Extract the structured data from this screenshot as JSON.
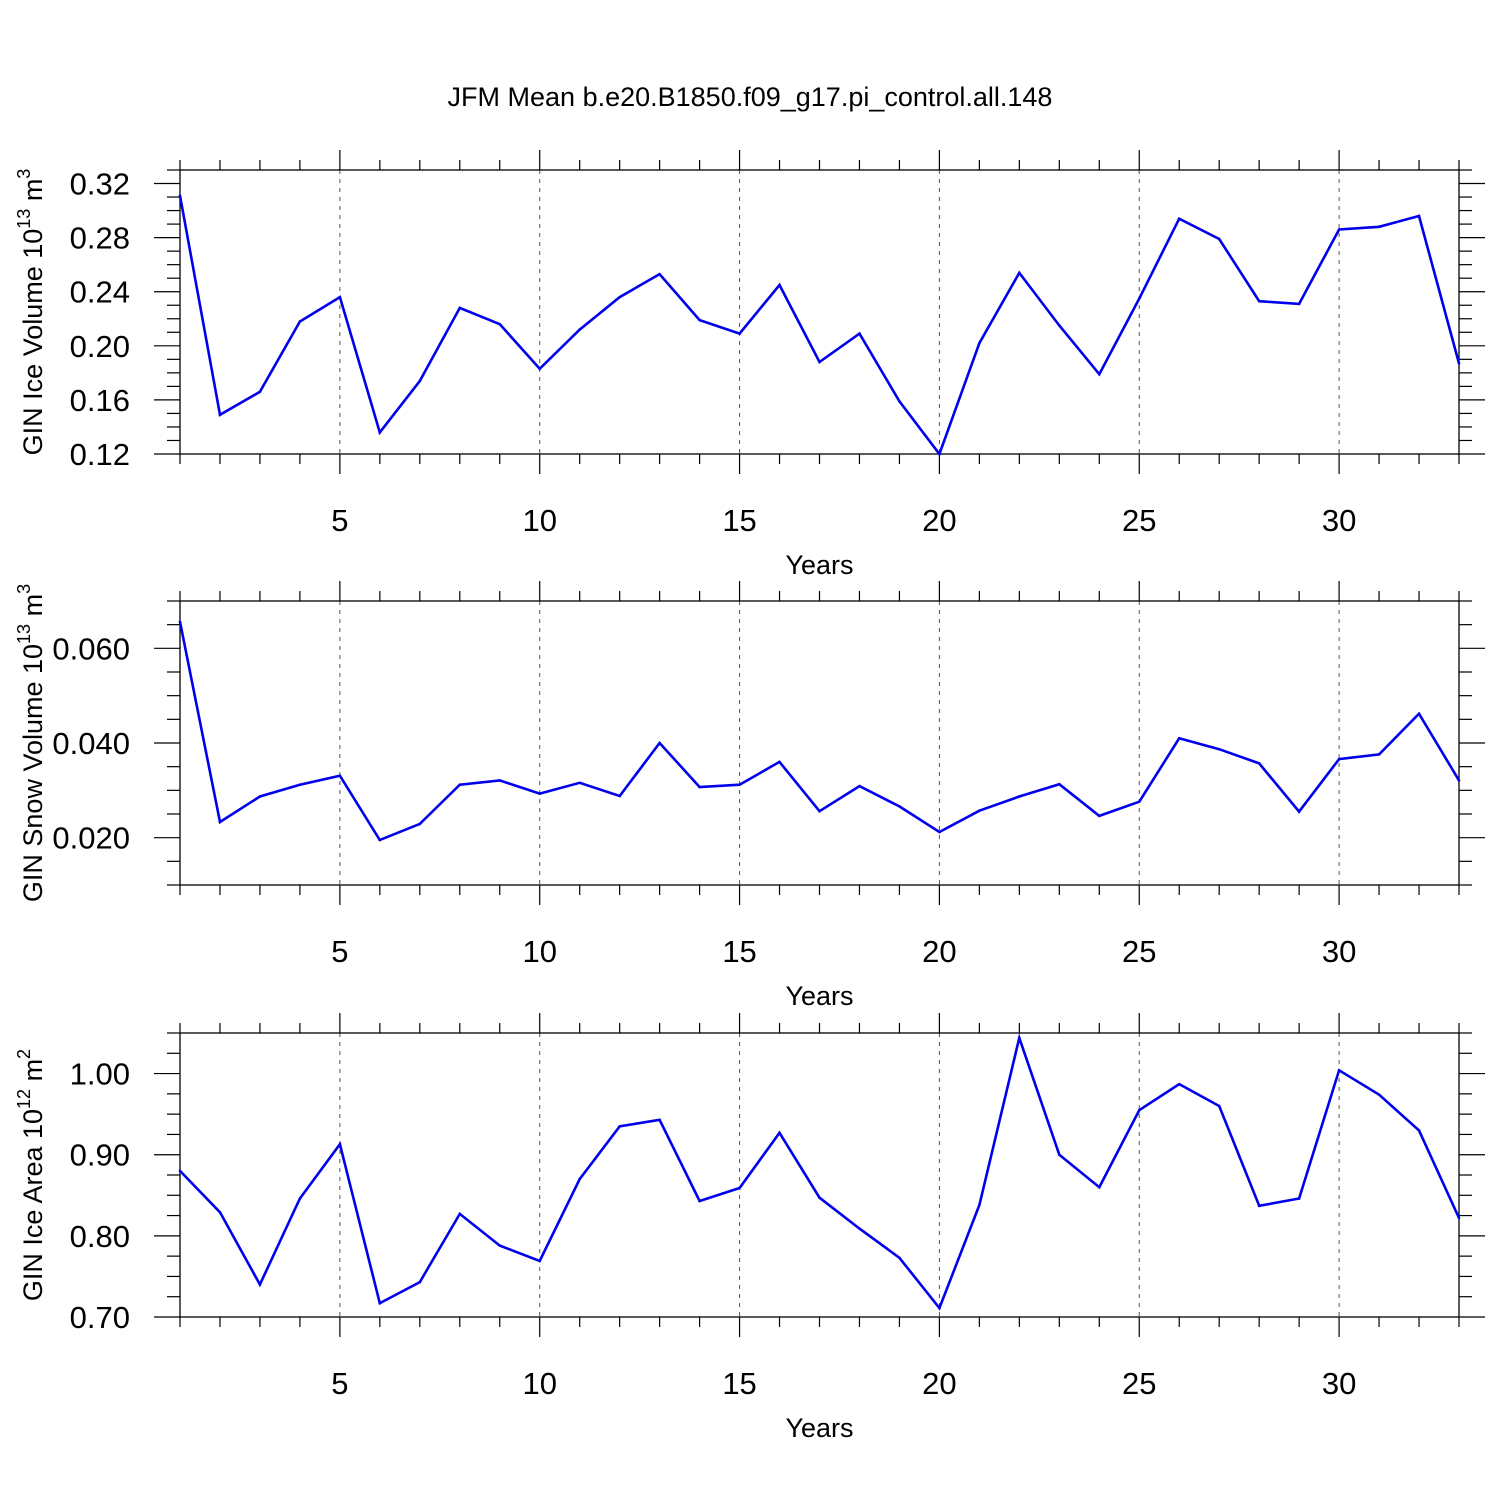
{
  "title": "JFM Mean b.e20.B1850.f09_g17.pi_control.all.148",
  "colors": {
    "series": "#0000ee",
    "axis": "#000000",
    "grid": "#555555"
  },
  "chart_data": [
    {
      "type": "line",
      "xlabel": "Years",
      "ylabel": {
        "text": "GIN Ice Volume 10",
        "exponent": "13",
        "unit": " m",
        "unit_exponent": "3"
      },
      "xlim": [
        1,
        33
      ],
      "ylim": [
        0.12,
        0.33
      ],
      "xticks": [
        5,
        10,
        15,
        20,
        25,
        30
      ],
      "xtick_labels": [
        "5",
        "10",
        "15",
        "20",
        "25",
        "30"
      ],
      "yticks": [
        0.12,
        0.16,
        0.2,
        0.24,
        0.28,
        0.32
      ],
      "ytick_labels": [
        "0.12",
        "0.16",
        "0.20",
        "0.24",
        "0.28",
        "0.32"
      ],
      "grid": "vertical-dashed",
      "x": [
        1,
        2,
        3,
        4,
        5,
        6,
        7,
        8,
        9,
        10,
        11,
        12,
        13,
        14,
        15,
        16,
        17,
        18,
        19,
        20,
        21,
        22,
        23,
        24,
        25,
        26,
        27,
        28,
        29,
        30,
        31,
        32,
        33
      ],
      "values": [
        0.311,
        0.149,
        0.166,
        0.218,
        0.236,
        0.136,
        0.174,
        0.228,
        0.216,
        0.183,
        0.212,
        0.236,
        0.253,
        0.219,
        0.209,
        0.245,
        0.188,
        0.209,
        0.159,
        0.12,
        0.202,
        0.254,
        0.215,
        0.179,
        0.235,
        0.294,
        0.279,
        0.233,
        0.231,
        0.286,
        0.288,
        0.296,
        0.187
      ]
    },
    {
      "type": "line",
      "xlabel": "Years",
      "ylabel": {
        "text": "GIN Snow Volume 10",
        "exponent": "13",
        "unit": " m",
        "unit_exponent": "3"
      },
      "xlim": [
        1,
        33
      ],
      "ylim": [
        0.01,
        0.07
      ],
      "xticks": [
        5,
        10,
        15,
        20,
        25,
        30
      ],
      "xtick_labels": [
        "5",
        "10",
        "15",
        "20",
        "25",
        "30"
      ],
      "yticks": [
        0.02,
        0.04,
        0.06
      ],
      "ytick_labels": [
        "0.020",
        "0.040",
        "0.060"
      ],
      "grid": "vertical-dashed",
      "x": [
        1,
        2,
        3,
        4,
        5,
        6,
        7,
        8,
        9,
        10,
        11,
        12,
        13,
        14,
        15,
        16,
        17,
        18,
        19,
        20,
        21,
        22,
        23,
        24,
        25,
        26,
        27,
        28,
        29,
        30,
        31,
        32,
        33
      ],
      "values": [
        0.0656,
        0.0233,
        0.0287,
        0.0312,
        0.0331,
        0.0195,
        0.0229,
        0.0312,
        0.0321,
        0.0293,
        0.0316,
        0.0288,
        0.04,
        0.0307,
        0.0312,
        0.036,
        0.0256,
        0.0309,
        0.0266,
        0.0212,
        0.0257,
        0.0287,
        0.0313,
        0.0246,
        0.0276,
        0.041,
        0.0387,
        0.0357,
        0.0255,
        0.0366,
        0.0376,
        0.0462,
        0.0321
      ]
    },
    {
      "type": "line",
      "xlabel": "Years",
      "ylabel": {
        "text": "GIN Ice Area 10",
        "exponent": "12",
        "unit": " m",
        "unit_exponent": "2"
      },
      "xlim": [
        1,
        33
      ],
      "ylim": [
        0.7,
        1.05
      ],
      "xticks": [
        5,
        10,
        15,
        20,
        25,
        30
      ],
      "xtick_labels": [
        "5",
        "10",
        "15",
        "20",
        "25",
        "30"
      ],
      "yticks": [
        0.7,
        0.8,
        0.9,
        1.0
      ],
      "ytick_labels": [
        "0.70",
        "0.80",
        "0.90",
        "1.00"
      ],
      "grid": "vertical-dashed",
      "x": [
        1,
        2,
        3,
        4,
        5,
        6,
        7,
        8,
        9,
        10,
        11,
        12,
        13,
        14,
        15,
        16,
        17,
        18,
        19,
        20,
        21,
        22,
        23,
        24,
        25,
        26,
        27,
        28,
        29,
        30,
        31,
        32,
        33
      ],
      "values": [
        0.88,
        0.829,
        0.74,
        0.846,
        0.913,
        0.717,
        0.743,
        0.827,
        0.788,
        0.769,
        0.87,
        0.935,
        0.943,
        0.843,
        0.859,
        0.927,
        0.847,
        0.809,
        0.773,
        0.711,
        0.838,
        1.044,
        0.9,
        0.86,
        0.955,
        0.987,
        0.96,
        0.837,
        0.846,
        1.004,
        0.974,
        0.93,
        0.822
      ]
    }
  ]
}
